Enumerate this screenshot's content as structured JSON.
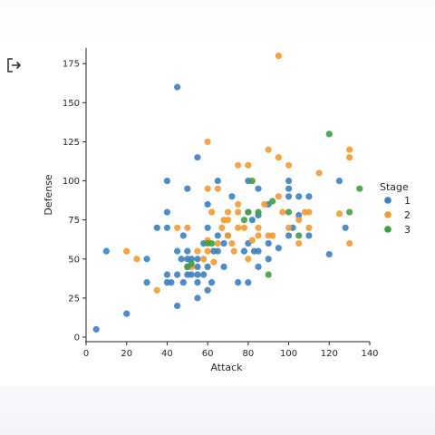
{
  "page": {
    "exit_icon": "exit-icon"
  },
  "chart_data": {
    "type": "scatter",
    "title": "",
    "xlabel": "Attack",
    "ylabel": "Defense",
    "xlim": [
      0,
      140
    ],
    "ylim": [
      0,
      185
    ],
    "xticks": [
      0,
      20,
      40,
      60,
      80,
      100,
      120,
      140
    ],
    "yticks": [
      0,
      25,
      50,
      75,
      100,
      125,
      150,
      175
    ],
    "grid": false,
    "legend": {
      "title": "Stage",
      "position": "right"
    },
    "series": [
      {
        "name": "1",
        "color": "#3b7fc0",
        "points": [
          [
            5,
            5
          ],
          [
            10,
            55
          ],
          [
            20,
            15
          ],
          [
            30,
            35
          ],
          [
            30,
            50
          ],
          [
            35,
            70
          ],
          [
            40,
            35
          ],
          [
            40,
            40
          ],
          [
            40,
            70
          ],
          [
            40,
            80
          ],
          [
            40,
            100
          ],
          [
            42,
            35
          ],
          [
            45,
            20
          ],
          [
            45,
            40
          ],
          [
            45,
            55
          ],
          [
            45,
            160
          ],
          [
            47,
            50
          ],
          [
            48,
            65
          ],
          [
            48,
            35
          ],
          [
            50,
            40
          ],
          [
            50,
            45
          ],
          [
            50,
            50
          ],
          [
            50,
            55
          ],
          [
            50,
            95
          ],
          [
            52,
            40
          ],
          [
            52,
            50
          ],
          [
            55,
            25
          ],
          [
            55,
            35
          ],
          [
            55,
            40
          ],
          [
            55,
            45
          ],
          [
            55,
            50
          ],
          [
            55,
            115
          ],
          [
            58,
            40
          ],
          [
            58,
            60
          ],
          [
            60,
            30
          ],
          [
            60,
            45
          ],
          [
            60,
            70
          ],
          [
            60,
            85
          ],
          [
            62,
            35
          ],
          [
            63,
            55
          ],
          [
            65,
            65
          ],
          [
            65,
            55
          ],
          [
            65,
            100
          ],
          [
            68,
            45
          ],
          [
            68,
            60
          ],
          [
            70,
            65
          ],
          [
            72,
            90
          ],
          [
            75,
            35
          ],
          [
            78,
            55
          ],
          [
            80,
            35
          ],
          [
            80,
            60
          ],
          [
            80,
            80
          ],
          [
            80,
            100
          ],
          [
            82,
            75
          ],
          [
            83,
            55
          ],
          [
            85,
            45
          ],
          [
            85,
            55
          ],
          [
            85,
            78
          ],
          [
            85,
            95
          ],
          [
            90,
            50
          ],
          [
            90,
            60
          ],
          [
            90,
            85
          ],
          [
            95,
            57
          ],
          [
            100,
            65
          ],
          [
            100,
            90
          ],
          [
            100,
            95
          ],
          [
            100,
            100
          ],
          [
            102,
            70
          ],
          [
            105,
            90
          ],
          [
            105,
            78
          ],
          [
            110,
            65
          ],
          [
            110,
            90
          ],
          [
            120,
            53
          ],
          [
            125,
            100
          ],
          [
            128,
            70
          ]
        ]
      },
      {
        "name": "2",
        "color": "#f39a31",
        "points": [
          [
            20,
            55
          ],
          [
            25,
            50
          ],
          [
            35,
            30
          ],
          [
            45,
            70
          ],
          [
            50,
            70
          ],
          [
            52,
            45
          ],
          [
            55,
            55
          ],
          [
            58,
            50
          ],
          [
            60,
            55
          ],
          [
            60,
            62
          ],
          [
            60,
            95
          ],
          [
            60,
            125
          ],
          [
            62,
            80
          ],
          [
            63,
            48
          ],
          [
            65,
            60
          ],
          [
            65,
            95
          ],
          [
            67,
            70
          ],
          [
            68,
            75
          ],
          [
            70,
            65
          ],
          [
            70,
            75
          ],
          [
            70,
            80
          ],
          [
            72,
            60
          ],
          [
            73,
            55
          ],
          [
            75,
            70
          ],
          [
            75,
            80
          ],
          [
            75,
            85
          ],
          [
            75,
            110
          ],
          [
            78,
            70
          ],
          [
            80,
            110
          ],
          [
            80,
            50
          ],
          [
            82,
            62
          ],
          [
            85,
            70
          ],
          [
            85,
            65
          ],
          [
            88,
            85
          ],
          [
            90,
            65
          ],
          [
            90,
            120
          ],
          [
            92,
            65
          ],
          [
            95,
            90
          ],
          [
            95,
            115
          ],
          [
            95,
            180
          ],
          [
            97,
            80
          ],
          [
            100,
            70
          ],
          [
            100,
            110
          ],
          [
            105,
            60
          ],
          [
            105,
            75
          ],
          [
            108,
            80
          ],
          [
            110,
            70
          ],
          [
            110,
            80
          ],
          [
            115,
            105
          ],
          [
            125,
            79
          ],
          [
            130,
            60
          ],
          [
            130,
            115
          ],
          [
            130,
            120
          ]
        ]
      },
      {
        "name": "3",
        "color": "#3fa03f",
        "points": [
          [
            50,
            45
          ],
          [
            52,
            47
          ],
          [
            60,
            60
          ],
          [
            62,
            60
          ],
          [
            78,
            75
          ],
          [
            80,
            80
          ],
          [
            82,
            100
          ],
          [
            85,
            80
          ],
          [
            90,
            40
          ],
          [
            92,
            87
          ],
          [
            100,
            80
          ],
          [
            105,
            65
          ],
          [
            120,
            130
          ],
          [
            130,
            80
          ],
          [
            135,
            95
          ]
        ]
      }
    ]
  }
}
